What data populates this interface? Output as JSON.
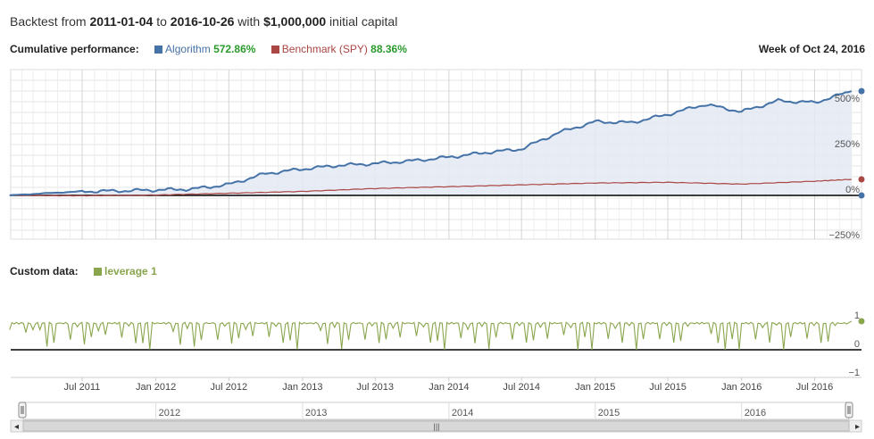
{
  "header": {
    "prefix": "Backtest from ",
    "start_date": "2011-01-04",
    "mid": " to ",
    "end_date": "2016-10-26",
    "mid2": " with ",
    "capital": "$1,000,000",
    "suffix": " initial capital"
  },
  "legend": {
    "label": "Cumulative performance:",
    "algorithm_name": "Algorithm",
    "algorithm_value": "572.86%",
    "benchmark_name": "Benchmark (SPY)",
    "benchmark_value": "88.36%",
    "week_label": "Week of Oct 24, 2016"
  },
  "custom": {
    "label": "Custom data:",
    "series_name": "leverage",
    "series_value": "1"
  },
  "colors": {
    "algorithm": "#4572a7",
    "benchmark": "#aa4643",
    "leverage": "#89a54e",
    "area_fill": "#e4e9f3"
  },
  "chart_data": [
    {
      "type": "area",
      "x_start": "2011-01-04",
      "x_end": "2016-10-26",
      "yticks": [
        "500%",
        "250%",
        "0%",
        "−250%"
      ],
      "ylim": [
        -250,
        600
      ],
      "series": [
        {
          "name": "Algorithm",
          "x": [
            "2011-01",
            "2011-04",
            "2011-07",
            "2011-10",
            "2012-01",
            "2012-04",
            "2012-07",
            "2012-10",
            "2013-01",
            "2013-04",
            "2013-07",
            "2013-10",
            "2014-01",
            "2014-04",
            "2014-07",
            "2014-10",
            "2015-01",
            "2015-04",
            "2015-07",
            "2015-10",
            "2016-01",
            "2016-04",
            "2016-07",
            "2016-10"
          ],
          "values": [
            0,
            12,
            22,
            25,
            30,
            35,
            60,
            120,
            145,
            165,
            175,
            190,
            210,
            235,
            255,
            345,
            405,
            400,
            445,
            500,
            460,
            520,
            510,
            572.86
          ]
        },
        {
          "name": "Benchmark (SPY)",
          "x": [
            "2011-01",
            "2011-07",
            "2012-01",
            "2012-07",
            "2013-01",
            "2013-07",
            "2014-01",
            "2014-07",
            "2015-01",
            "2015-07",
            "2016-01",
            "2016-07",
            "2016-10"
          ],
          "values": [
            0,
            -2,
            2,
            12,
            22,
            38,
            48,
            58,
            68,
            72,
            62,
            78,
            88.36
          ]
        }
      ]
    },
    {
      "type": "line",
      "x_start": "2011-01-04",
      "x_end": "2016-10-26",
      "yticks": [
        "1",
        "0",
        "−1"
      ],
      "ylim": [
        -1,
        1
      ],
      "series": [
        {
          "name": "leverage",
          "x": [
            "2011-01",
            "2011-04",
            "2011-07",
            "2011-10",
            "2012-01",
            "2012-04",
            "2012-07",
            "2012-10",
            "2013-01",
            "2013-04",
            "2013-07",
            "2013-10",
            "2014-01",
            "2014-04",
            "2014-07",
            "2014-10",
            "2015-01",
            "2015-04",
            "2015-07",
            "2015-10",
            "2016-01",
            "2016-04",
            "2016-07",
            "2016-10"
          ],
          "values": [
            0.95,
            0.2,
            0.95,
            0.0,
            0.95,
            0.3,
            0.95,
            0.1,
            0.95,
            0.2,
            0.95,
            0.0,
            0.95,
            0.3,
            0.95,
            0.2,
            0.95,
            0.1,
            0.95,
            0.0,
            0.95,
            0.2,
            0.95,
            1.0
          ]
        }
      ]
    }
  ],
  "xaxis": {
    "labels": [
      "Jul 2011",
      "Jan 2012",
      "Jul 2012",
      "Jan 2013",
      "Jul 2013",
      "Jan 2014",
      "Jul 2014",
      "Jan 2015",
      "Jul 2015",
      "Jan 2016",
      "Jul 2016"
    ]
  },
  "navigator": {
    "years": [
      "2012",
      "2013",
      "2014",
      "2015",
      "2016"
    ],
    "left_arrow": "◂",
    "right_arrow": "▸",
    "grip": "|||"
  }
}
